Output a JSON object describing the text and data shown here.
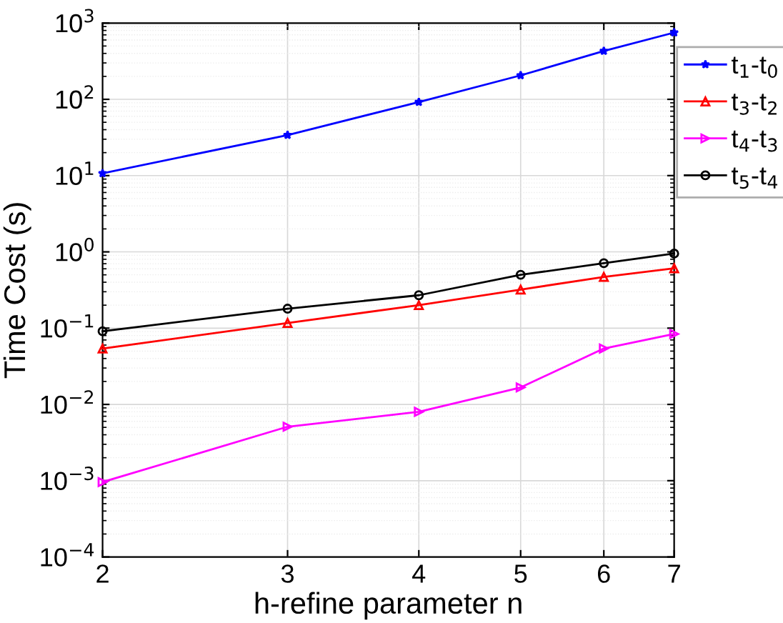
{
  "chart_data": {
    "type": "line",
    "xlabel": "h-refine parameter n",
    "ylabel": "Time Cost (s)",
    "x": [
      2,
      3,
      4,
      5,
      6,
      7
    ],
    "series": [
      {
        "name": "t$_{1}$-t$_{0}$",
        "color": "#0000ff",
        "marker": "star",
        "values": [
          10.7,
          34,
          92,
          206,
          430,
          750
        ]
      },
      {
        "name": "t$_{3}$-t$_{2}$",
        "color": "#ff0000",
        "marker": "triangle",
        "values": [
          0.054,
          0.117,
          0.2,
          0.32,
          0.47,
          0.61
        ]
      },
      {
        "name": "t$_{4}$-t$_{3}$",
        "color": "#ff00ff",
        "marker": "triangle-right",
        "values": [
          0.00096,
          0.0051,
          0.008,
          0.0167,
          0.054,
          0.084
        ]
      },
      {
        "name": "t$_{5}$-t$_{4}$",
        "color": "#000000",
        "marker": "circle",
        "values": [
          0.091,
          0.18,
          0.27,
          0.5,
          0.71,
          0.95
        ]
      }
    ],
    "log": "xy",
    "xlim": [
      2,
      7
    ],
    "xticks": [
      2,
      3,
      4,
      5,
      6,
      7
    ],
    "ylim": [
      0.0001,
      1000
    ],
    "yticks": [
      {
        "value": 0.0001,
        "label": "10$^{−4}$"
      },
      {
        "value": 0.001,
        "label": "10$^{−3}$"
      },
      {
        "value": 0.01,
        "label": "10$^{−2}$"
      },
      {
        "value": 0.1,
        "label": "10$^{−1}$"
      },
      {
        "value": 1,
        "label": "10$^{0}$"
      },
      {
        "value": 10,
        "label": "10$^{1}$"
      },
      {
        "value": 100,
        "label": "10$^{2}$"
      },
      {
        "value": 1000,
        "label": "10$^{3}$"
      }
    ],
    "grid": true,
    "legend": "outside top right",
    "line_style": "solid"
  }
}
